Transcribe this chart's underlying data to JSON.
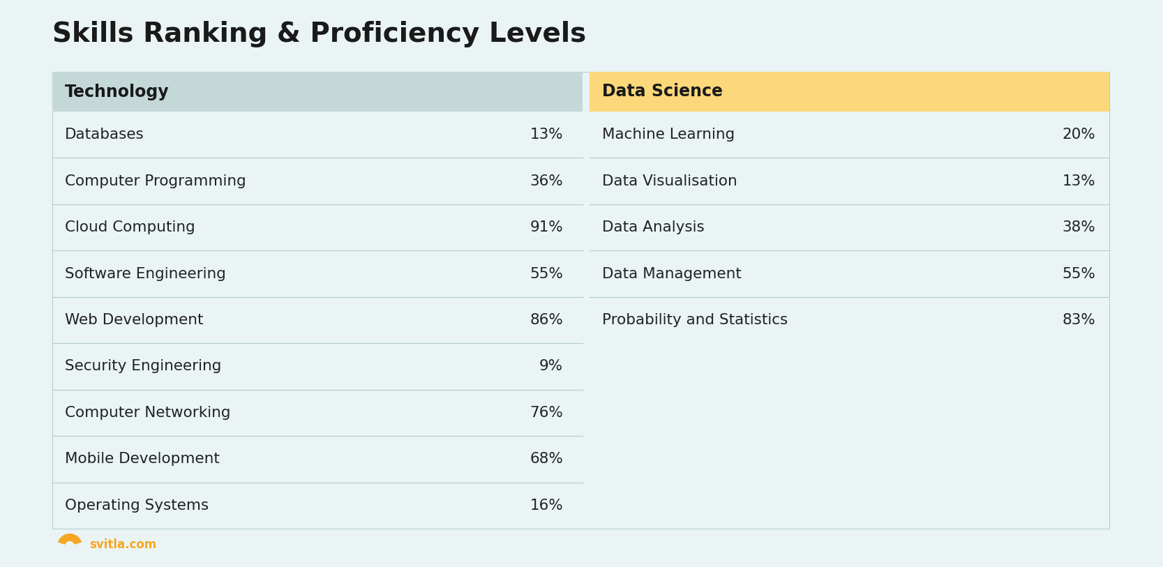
{
  "title": "Skills Ranking & Proficiency Levels",
  "background_color": "#eaf4f4",
  "tech_header_bg": "#c5d8d8",
  "ds_header_bg": "#fdd87a",
  "header_text_color": "#1a1a1a",
  "row_text_color": "#222222",
  "divider_color": "#b8cece",
  "tech_col": {
    "header": "Technology",
    "items": [
      [
        "Databases",
        "13%"
      ],
      [
        "Computer Programming",
        "36%"
      ],
      [
        "Cloud Computing",
        "91%"
      ],
      [
        "Software Engineering",
        "55%"
      ],
      [
        "Web Development",
        "86%"
      ],
      [
        "Security Engineering",
        "9%"
      ],
      [
        "Computer Networking",
        "76%"
      ],
      [
        "Mobile Development",
        "68%"
      ],
      [
        "Operating Systems",
        "16%"
      ]
    ]
  },
  "ds_col": {
    "header": "Data Science",
    "items": [
      [
        "Machine Learning",
        "20%"
      ],
      [
        "Data Visualisation",
        "13%"
      ],
      [
        "Data Analysis",
        "38%"
      ],
      [
        "Data Management",
        "55%"
      ],
      [
        "Probability and Statistics",
        "83%"
      ]
    ]
  },
  "logo_color": "#f5a623",
  "logo_text": "svitla.com",
  "logo_text_color": "#f5a623"
}
